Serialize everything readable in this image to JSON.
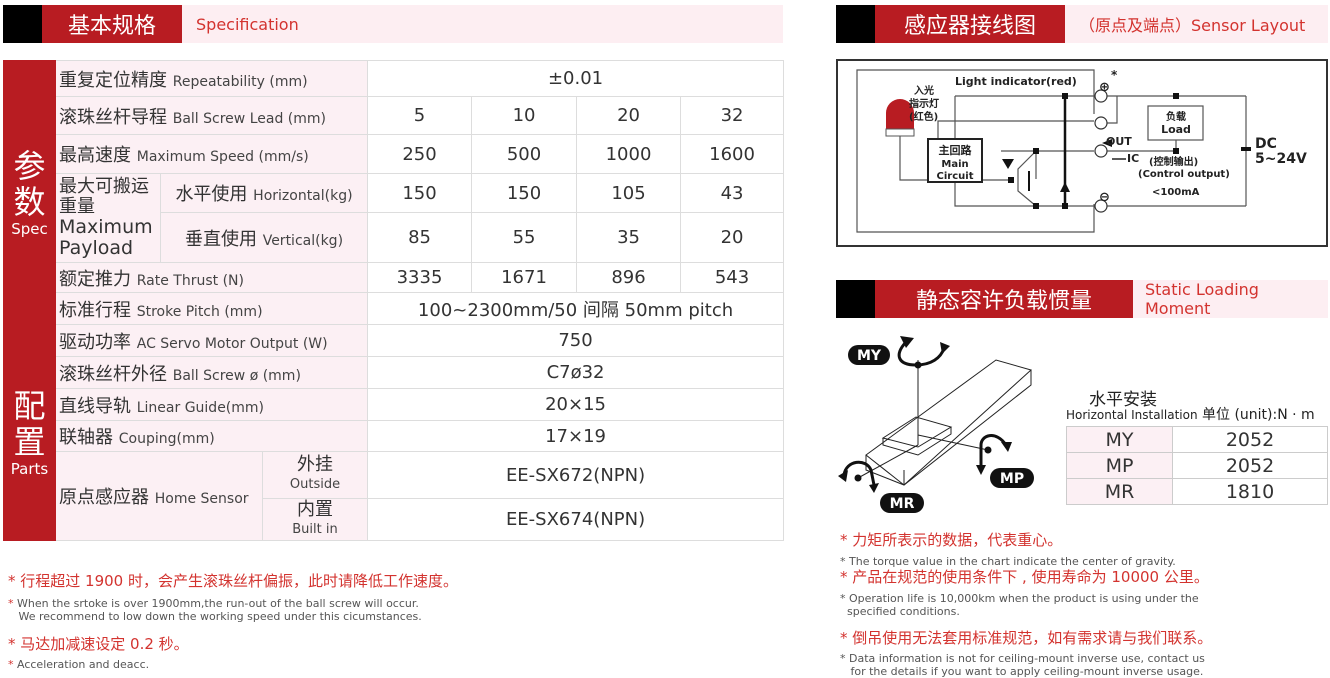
{
  "spec_section": {
    "title_cn": "基本规格",
    "title_en": "Specification"
  },
  "spec_groups": {
    "params": {
      "cn_1": "参",
      "cn_2": "数",
      "en": "Spec"
    },
    "parts": {
      "cn_1": "配",
      "cn_2": "置",
      "en": "Parts"
    }
  },
  "spec_rows": {
    "repeatability": {
      "cn": "重复定位精度",
      "en": "Repeatability (mm)",
      "value": "±0.01"
    },
    "lead": {
      "cn": "滚珠丝杆导程",
      "en": "Ball Screw Lead (mm)",
      "values": [
        "5",
        "10",
        "20",
        "32"
      ]
    },
    "speed": {
      "cn": "最高速度",
      "en": "Maximum Speed (mm/s)",
      "values": [
        "250",
        "500",
        "1000",
        "1600"
      ]
    },
    "payload": {
      "cn_1": "最大可搬运",
      "cn_2": "重量",
      "en_1": "Maximum",
      "en_2": "Payload",
      "horizontal": {
        "cn": "水平使用",
        "en": "Horizontal(kg)",
        "values": [
          "150",
          "150",
          "105",
          "43"
        ]
      },
      "vertical": {
        "cn": "垂直使用",
        "en": "Vertical(kg)",
        "values": [
          "85",
          "55",
          "35",
          "20"
        ]
      }
    },
    "thrust": {
      "cn": "额定推力",
      "en": "Rate Thrust (N)",
      "values": [
        "3335",
        "1671",
        "896",
        "543"
      ]
    },
    "stroke": {
      "cn": "标准行程",
      "en": "Stroke Pitch (mm)",
      "value": "100~2300mm/50 间隔 50mm pitch"
    },
    "power": {
      "cn": "驱动功率",
      "en": "AC Servo Motor Output (W)",
      "value": "750"
    },
    "screw": {
      "cn": "滚珠丝杆外径",
      "en": "Ball Screw ø (mm)",
      "value": "C7ø32"
    },
    "guide": {
      "cn": "直线导轨",
      "en": "Linear Guide(mm)",
      "value": "20×15"
    },
    "coupling": {
      "cn": "联轴器",
      "en": "Couping(mm)",
      "value": "17×19"
    },
    "sensor": {
      "cn": "原点感应器",
      "en": "Home Sensor",
      "outside": {
        "cn": "外挂",
        "en": "Outside",
        "value": "EE-SX672(NPN)"
      },
      "builtin": {
        "cn": "内置",
        "en": "Built in",
        "value": "EE-SX674(NPN)"
      }
    }
  },
  "spec_notes": [
    {
      "cn": "行程超过 1900 时，会产生滚珠丝杆偏振，此时请降低工作速度。",
      "en_1": "When the srtoke is over 1900mm,the run-out of the ball screw will occur.",
      "en_2": "We recommend to low down the working speed under this cicumstances."
    },
    {
      "cn": " 马达加减速设定 0.2 秒。",
      "en_1": "Acceleration and deacc.",
      "en_2": ""
    }
  ],
  "sensor_section": {
    "title_cn": "感应器接线图",
    "title_en": "（原点及端点）Sensor Layout"
  },
  "circuit": {
    "light_indicator": "Light indicator(red)",
    "lamp_1": "入光",
    "lamp_2": "指示灯",
    "lamp_3": "(红色)",
    "main_cn": "主回路",
    "main_en_1": "Main",
    "main_en_2": "Circuit",
    "load_cn": "负载",
    "load_en": "Load",
    "out": "OUT",
    "ic": "IC",
    "control_cn": "(控制输出)",
    "control_en": "(Control output)",
    "current": "<100mA",
    "dc": "DC",
    "voltage": "5~24V",
    "plus": "⊕",
    "minus": "⊖",
    "asterisk": "*"
  },
  "moment_section": {
    "title_cn": "静态容许负载惯量",
    "title_en": "Static Loading Moment"
  },
  "moment_diagram": {
    "my": "MY",
    "mp": "MP",
    "mr": "MR"
  },
  "moment_table": {
    "install_cn": "水平安装",
    "install_en": "Horizontal Installation",
    "unit": "单位 (unit):N · m",
    "rows": [
      {
        "k": "MY",
        "v": "2052"
      },
      {
        "k": "MP",
        "v": "2052"
      },
      {
        "k": "MR",
        "v": "1810"
      }
    ]
  },
  "moment_notes": [
    {
      "cn": "力矩所表示的数据，代表重心。",
      "en_1": " The torque value in the chart indicate the center of gravity.",
      "en_2": ""
    },
    {
      "cn": "产品在规范的使用条件下 , 使用寿命为 10000 公里。",
      "en_1": "Operation life is 10,000km when the product is using under the",
      "en_2": "specified conditions."
    },
    {
      "cn": "倒吊使用无法套用标准规范，如有需求请与我们联系。",
      "en_1": "Data information is not for ceiling-mount inverse use, contact us",
      "en_2": " for the details if you want to apply ceiling-mount inverse usage."
    }
  ],
  "note_marker": "*",
  "colors": {
    "brand_red": "#b81c22",
    "note_red": "#d3332f",
    "pink": "#fcf0f4"
  }
}
